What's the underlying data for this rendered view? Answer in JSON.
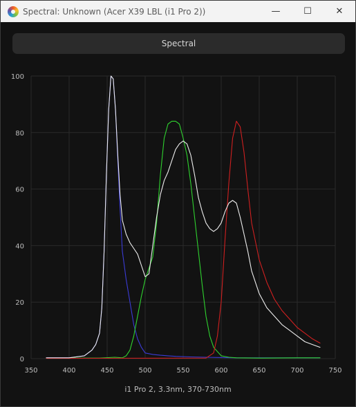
{
  "window": {
    "title": "Spectral: Unknown (Acer X39 LBL (i1 Pro 2))",
    "controls": {
      "minimize": "—",
      "maximize": "☐",
      "close": "✕"
    }
  },
  "mode_button": {
    "label": "Spectral"
  },
  "footer": {
    "label": "i1 Pro 2, 3.3nm, 370-730nm"
  },
  "chart_data": {
    "type": "line",
    "title": "",
    "xlabel": "",
    "ylabel": "",
    "xlim": [
      350,
      750
    ],
    "ylim": [
      0,
      100
    ],
    "x_ticks": [
      350,
      400,
      450,
      500,
      550,
      600,
      650,
      700,
      750
    ],
    "y_ticks": [
      0,
      20,
      40,
      60,
      80,
      100
    ],
    "grid": true,
    "series": [
      {
        "color": "#3b3bd6",
        "x": [
          370,
          400,
          420,
          430,
          435,
          440,
          443,
          446,
          449,
          452,
          455,
          458,
          461,
          464,
          467,
          470,
          475,
          480,
          485,
          490,
          495,
          500,
          510,
          520,
          530,
          540,
          560,
          580,
          600,
          620,
          650,
          700,
          730
        ],
        "y": [
          0.3,
          0.3,
          1,
          3,
          5,
          9,
          18,
          38,
          65,
          88,
          100,
          99,
          88,
          70,
          53,
          38,
          28,
          20,
          12,
          7,
          4,
          2,
          1.5,
          1.2,
          1,
          0.8,
          0.6,
          0.5,
          0.4,
          0.3,
          0.3,
          0.3,
          0.3
        ]
      },
      {
        "color": "#2fd32f",
        "x": [
          370,
          440,
          460,
          470,
          475,
          480,
          485,
          490,
          495,
          500,
          505,
          510,
          515,
          520,
          525,
          530,
          535,
          540,
          545,
          550,
          555,
          560,
          565,
          570,
          575,
          580,
          585,
          590,
          600,
          610,
          620,
          650,
          700,
          730
        ],
        "y": [
          0.2,
          0.2,
          0.5,
          0.3,
          1,
          3,
          8,
          15,
          22,
          28,
          32,
          36,
          48,
          65,
          78,
          83,
          84,
          84,
          83,
          78,
          72,
          62,
          50,
          38,
          26,
          15,
          8,
          4,
          1,
          0.5,
          0.3,
          0.2,
          0.3,
          0.3
        ]
      },
      {
        "color": "#d02020",
        "x": [
          370,
          580,
          590,
          595,
          600,
          605,
          610,
          615,
          620,
          625,
          630,
          635,
          640,
          650,
          660,
          670,
          680,
          690,
          700,
          710,
          720,
          730
        ],
        "y": [
          0.1,
          0.2,
          2,
          8,
          20,
          42,
          62,
          78,
          84,
          82,
          73,
          60,
          48,
          35,
          27,
          21,
          17,
          14,
          11,
          9,
          7,
          5.5
        ]
      },
      {
        "color": "#eeeeee",
        "x": [
          370,
          400,
          420,
          430,
          435,
          440,
          443,
          446,
          449,
          452,
          455,
          458,
          461,
          464,
          467,
          470,
          475,
          480,
          485,
          490,
          495,
          500,
          505,
          510,
          515,
          520,
          525,
          530,
          535,
          540,
          545,
          550,
          555,
          560,
          565,
          570,
          575,
          580,
          585,
          590,
          595,
          600,
          605,
          610,
          615,
          620,
          625,
          630,
          635,
          640,
          650,
          660,
          670,
          680,
          690,
          700,
          710,
          720,
          730
        ],
        "y": [
          0.3,
          0.3,
          1,
          3,
          5,
          9,
          18,
          38,
          65,
          88,
          100,
          99,
          88,
          72,
          58,
          49,
          44,
          41,
          39,
          37,
          33,
          29,
          30,
          40,
          50,
          58,
          63,
          66,
          70,
          74,
          76,
          77,
          76,
          72,
          65,
          57,
          52,
          48,
          46,
          45,
          46,
          48,
          52,
          55,
          56,
          55,
          50,
          44,
          38,
          31,
          23,
          18,
          15,
          12,
          10,
          8,
          6,
          5,
          4
        ]
      }
    ]
  }
}
